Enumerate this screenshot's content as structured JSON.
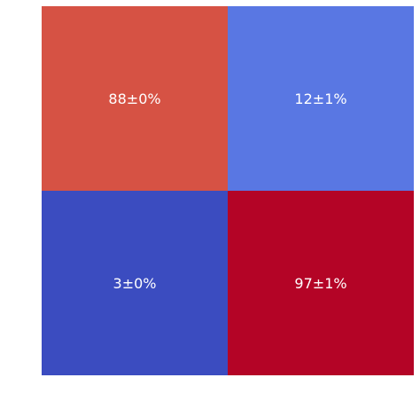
{
  "chart_data": {
    "type": "heatmap",
    "title": "",
    "xlabel": "",
    "ylabel": "",
    "x_categories": [
      "",
      ""
    ],
    "y_categories": [
      "",
      ""
    ],
    "values": [
      [
        88,
        12
      ],
      [
        3,
        97
      ]
    ],
    "annotations": [
      [
        "88±0%",
        "12±1%"
      ],
      [
        "3±0%",
        "97±1%"
      ]
    ],
    "colormap": "coolwarm",
    "colors": [
      [
        "#d65244",
        "#5977e3"
      ],
      [
        "#3b4cc0",
        "#b40426"
      ]
    ],
    "grid": false,
    "legend": "none"
  }
}
